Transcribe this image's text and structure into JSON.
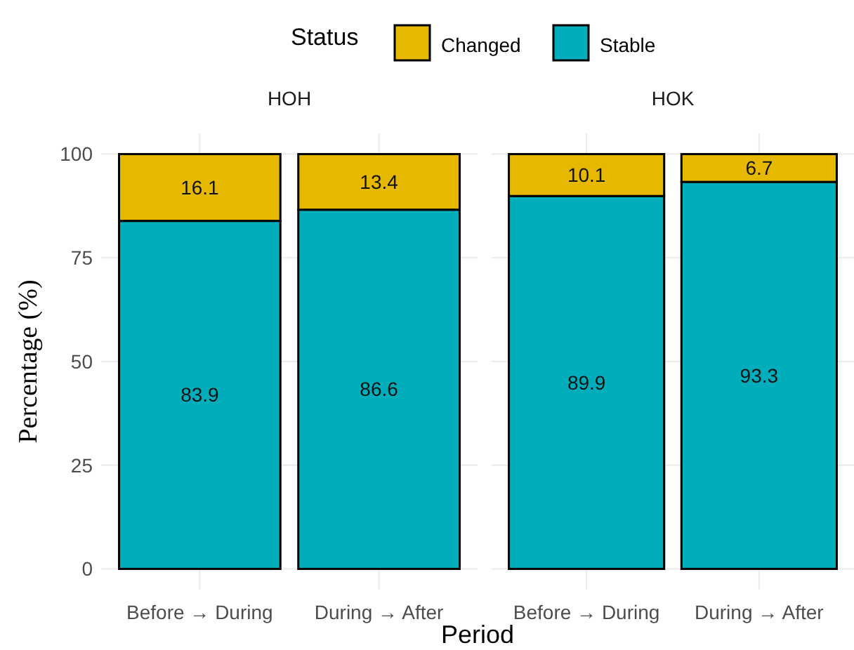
{
  "chart_data": [
    {
      "type": "bar",
      "title": "HOH",
      "stacked": true,
      "categories": [
        "Before → During",
        "During → After"
      ],
      "ylabel": "Percentage (%)",
      "xlabel": "Period",
      "legend_title": "Status",
      "legend": "top",
      "grid": true,
      "data_labels": true,
      "ylim": [
        -5,
        105
      ],
      "yticks": [
        0,
        25,
        50,
        75,
        100
      ],
      "series": [
        {
          "name": "Stable",
          "color": "#00adbb",
          "values": [
            83.9,
            86.6
          ]
        },
        {
          "name": "Changed",
          "color": "#e6b800",
          "values": [
            16.1,
            13.4
          ]
        }
      ]
    },
    {
      "type": "bar",
      "title": "HOK",
      "stacked": true,
      "categories": [
        "Before → During",
        "During → After"
      ],
      "tick_labels": "x",
      "grid": true,
      "data_labels": true,
      "ylim": [
        -5,
        105
      ],
      "yticks": [
        0,
        25,
        50,
        75,
        100
      ],
      "series": [
        {
          "color": "#00adbb",
          "values": [
            89.9,
            93.3
          ]
        },
        {
          "color": "#e6b800",
          "values": [
            10.1,
            6.7
          ]
        }
      ]
    }
  ]
}
